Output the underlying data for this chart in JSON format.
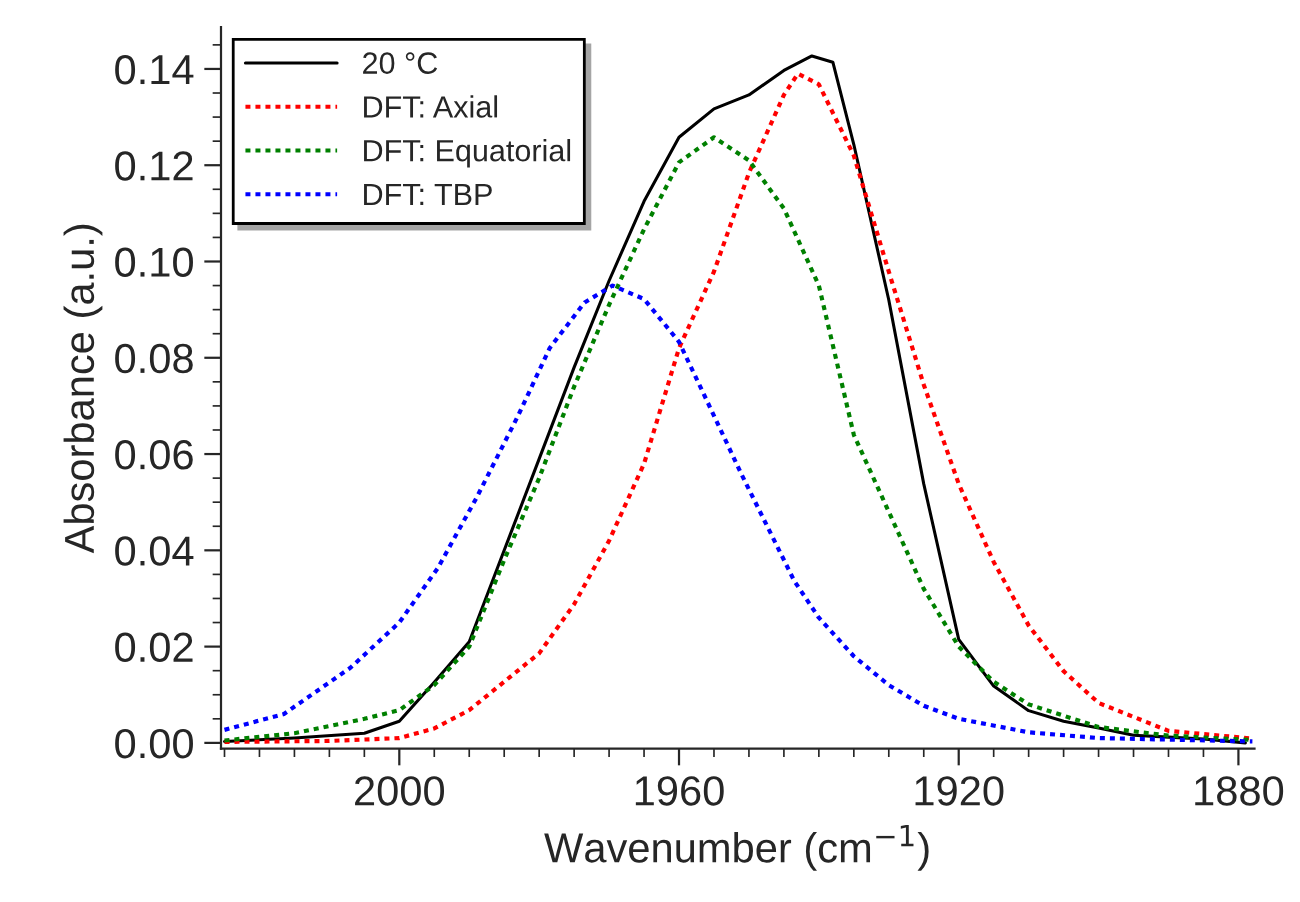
{
  "chart_data": {
    "type": "line",
    "xlabel": "Wavenumber (cm$^{−1}$)",
    "ylabel": "Absorbance (a.u.)",
    "xlim": [
      2025.5,
      1877.7
    ],
    "ylim": [
      -0.0012,
      0.1487
    ],
    "xticks": [
      2000,
      1960,
      1920,
      1880
    ],
    "yticks": [
      {
        "value": 0,
        "label": "0.00"
      },
      {
        "value": 0.02,
        "label": "0.02"
      },
      {
        "value": 0.04,
        "label": "0.04"
      },
      {
        "value": 0.06,
        "label": "0.06"
      },
      {
        "value": 0.08,
        "label": "0.08"
      },
      {
        "value": 0.1,
        "label": "0.10"
      },
      {
        "value": 0.12,
        "label": "0.12"
      },
      {
        "value": 0.14,
        "label": "0.14"
      }
    ],
    "grid": false,
    "legend": "top left",
    "marker": "none",
    "series": [
      {
        "name": "20 °C",
        "color": "#000000",
        "line_style": "solid",
        "x": [
          2025,
          2015,
          2005,
          2000,
          1995,
          1990,
          1985,
          1980,
          1975,
          1970,
          1965,
          1960,
          1955,
          1950,
          1945,
          1941,
          1938,
          1935,
          1930,
          1925,
          1920,
          1915,
          1910,
          1905,
          1900,
          1895,
          1890,
          1885,
          1879
        ],
        "values": [
          0.0003,
          0.001,
          0.002,
          0.0045,
          0.0126,
          0.021,
          0.04,
          0.059,
          0.078,
          0.096,
          0.1125,
          0.1258,
          0.1317,
          0.1346,
          0.1397,
          0.1427,
          0.1414,
          0.1243,
          0.092,
          0.0538,
          0.0215,
          0.0118,
          0.0067,
          0.0045,
          0.0031,
          0.0016,
          0.0012,
          0.0008,
          0.0
        ]
      },
      {
        "name": "DFT: Axial",
        "color": "#ff0000",
        "line_style": "dotted",
        "x": [
          2025,
          2010,
          2000,
          1995,
          1990,
          1985,
          1980,
          1975,
          1970,
          1965,
          1960,
          1955,
          1950,
          1945,
          1943,
          1940,
          1935,
          1930,
          1925,
          1920,
          1915,
          1910,
          1905,
          1900,
          1890,
          1878
        ],
        "values": [
          0.0002,
          0.0004,
          0.001,
          0.003,
          0.0068,
          0.0127,
          0.0186,
          0.0288,
          0.042,
          0.058,
          0.082,
          0.0979,
          0.1184,
          0.1346,
          0.139,
          0.1368,
          0.122,
          0.0979,
          0.0744,
          0.0538,
          0.0376,
          0.0244,
          0.0149,
          0.0083,
          0.0025,
          0.0009
        ]
      },
      {
        "name": "DFT: Equatorial",
        "color": "#008000",
        "line_style": "dotted",
        "x": [
          2025,
          2015,
          2005,
          2000,
          1995,
          1990,
          1985,
          1980,
          1975,
          1970,
          1965,
          1960,
          1955,
          1950,
          1945,
          1940,
          1935,
          1930,
          1925,
          1920,
          1915,
          1910,
          1900,
          1890,
          1878
        ],
        "values": [
          0.0005,
          0.002,
          0.005,
          0.0068,
          0.012,
          0.02,
          0.038,
          0.055,
          0.074,
          0.091,
          0.1067,
          0.1206,
          0.1258,
          0.121,
          0.111,
          0.095,
          0.064,
          0.048,
          0.032,
          0.02,
          0.0127,
          0.008,
          0.0033,
          0.0015,
          0.0006
        ]
      },
      {
        "name": "DFT: TBP",
        "color": "#0000ff",
        "line_style": "dotted",
        "x": [
          2025,
          2016.5,
          2007,
          2000,
          1994.5,
          1989,
          1983,
          1978.5,
          1973.5,
          1969.5,
          1965,
          1960,
          1955.5,
          1951,
          1943.5,
          1940,
          1935,
          1930,
          1925,
          1920,
          1910,
          1900,
          1878
        ],
        "values": [
          0.0027,
          0.006,
          0.0156,
          0.025,
          0.0363,
          0.0508,
          0.068,
          0.082,
          0.0915,
          0.095,
          0.0922,
          0.0833,
          0.0695,
          0.0556,
          0.0336,
          0.026,
          0.018,
          0.012,
          0.0077,
          0.005,
          0.0022,
          0.001,
          0.0003
        ]
      }
    ]
  }
}
